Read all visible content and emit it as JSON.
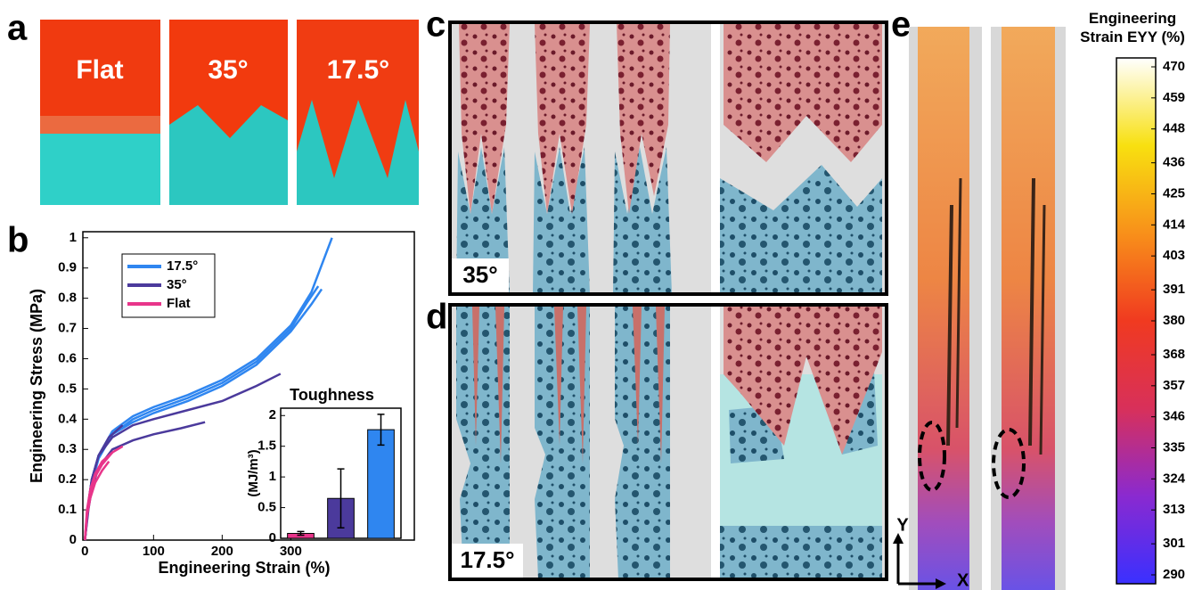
{
  "panels": {
    "a": {
      "letter": "a",
      "labels": [
        "Flat",
        "35°",
        "17.5°"
      ]
    },
    "b": {
      "letter": "b"
    },
    "c": {
      "letter": "c",
      "label": "35°"
    },
    "d": {
      "letter": "d",
      "label": "17.5°"
    },
    "e": {
      "letter": "e",
      "axes": [
        "Y",
        "X"
      ]
    }
  },
  "chart_data": [
    {
      "type": "line",
      "xlabel": "Engineering Strain (%)",
      "ylabel": "Engineering Stress (MPa)",
      "xlim": [
        -3,
        480
      ],
      "ylim": [
        0,
        1.02
      ],
      "xticks": [
        0,
        100,
        200,
        300
      ],
      "yticks": [
        0,
        0.1,
        0.2,
        0.3,
        0.4,
        0.5,
        0.6,
        0.7,
        0.8,
        0.9,
        1
      ],
      "legend": "upper-left",
      "series": [
        {
          "name": "17.5°",
          "color": "#2f86f0",
          "lines": [
            {
              "x": [
                0,
                5,
                10,
                20,
                40,
                70,
                100,
                150,
                200,
                250,
                300,
                330,
                360
              ],
              "y": [
                0,
                0.12,
                0.2,
                0.28,
                0.36,
                0.41,
                0.44,
                0.48,
                0.53,
                0.6,
                0.71,
                0.82,
                1.0
              ]
            },
            {
              "x": [
                0,
                5,
                10,
                20,
                40,
                70,
                100,
                150,
                200,
                250,
                300,
                325,
                340
              ],
              "y": [
                0,
                0.11,
                0.19,
                0.27,
                0.35,
                0.4,
                0.43,
                0.47,
                0.52,
                0.59,
                0.7,
                0.79,
                0.84
              ]
            },
            {
              "x": [
                0,
                5,
                10,
                20,
                40,
                70,
                100,
                150,
                200,
                250,
                300,
                330,
                345
              ],
              "y": [
                0,
                0.12,
                0.2,
                0.28,
                0.35,
                0.39,
                0.42,
                0.46,
                0.51,
                0.58,
                0.69,
                0.78,
                0.83
              ]
            }
          ]
        },
        {
          "name": "35°",
          "color": "#4b3a9c",
          "lines": [
            {
              "x": [
                0,
                5,
                10,
                20,
                40,
                70,
                100,
                150,
                200,
                250,
                285
              ],
              "y": [
                0,
                0.12,
                0.2,
                0.28,
                0.34,
                0.38,
                0.4,
                0.43,
                0.46,
                0.51,
                0.55
              ]
            },
            {
              "x": [
                0,
                5,
                10,
                20,
                40,
                70,
                100,
                140,
                175
              ],
              "y": [
                0,
                0.1,
                0.17,
                0.24,
                0.3,
                0.33,
                0.35,
                0.37,
                0.39
              ]
            },
            {
              "x": [
                0,
                5,
                10,
                20,
                35,
                55
              ],
              "y": [
                0,
                0.12,
                0.2,
                0.28,
                0.34,
                0.38
              ]
            }
          ]
        },
        {
          "name": "Flat",
          "color": "#e8358a",
          "lines": [
            {
              "x": [
                0,
                3,
                8,
                15,
                25,
                40,
                55
              ],
              "y": [
                0,
                0.1,
                0.17,
                0.22,
                0.26,
                0.29,
                0.31
              ]
            },
            {
              "x": [
                0,
                3,
                8,
                15,
                25,
                40
              ],
              "y": [
                0,
                0.09,
                0.16,
                0.21,
                0.25,
                0.29
              ]
            },
            {
              "x": [
                0,
                3,
                8,
                15,
                25,
                35
              ],
              "y": [
                0,
                0.08,
                0.14,
                0.19,
                0.23,
                0.26
              ]
            }
          ]
        }
      ]
    },
    {
      "type": "bar",
      "title": "Toughness",
      "ylabel": "(MJ/m³)",
      "ylim": [
        0,
        2.12
      ],
      "yticks": [
        0,
        0.5,
        1,
        1.5,
        2
      ],
      "values": [
        0.08,
        0.65,
        1.77
      ],
      "errors": [
        0.03,
        0.48,
        0.25
      ],
      "colors": [
        "#e8358a",
        "#4b3a9c",
        "#2f86f0"
      ]
    },
    {
      "type": "colorbar",
      "title": "Engineering Strain EYY (%)",
      "ylim": [
        290,
        470
      ],
      "yticks": [
        290,
        301,
        313,
        324,
        335,
        346,
        357,
        368,
        380,
        391,
        403,
        414,
        425,
        436,
        448,
        459,
        470
      ],
      "colormap": [
        "#3a30ff",
        "#8a2ad0",
        "#d8305a",
        "#f03a20",
        "#f8901a",
        "#f8e010",
        "#ffffff"
      ]
    }
  ]
}
